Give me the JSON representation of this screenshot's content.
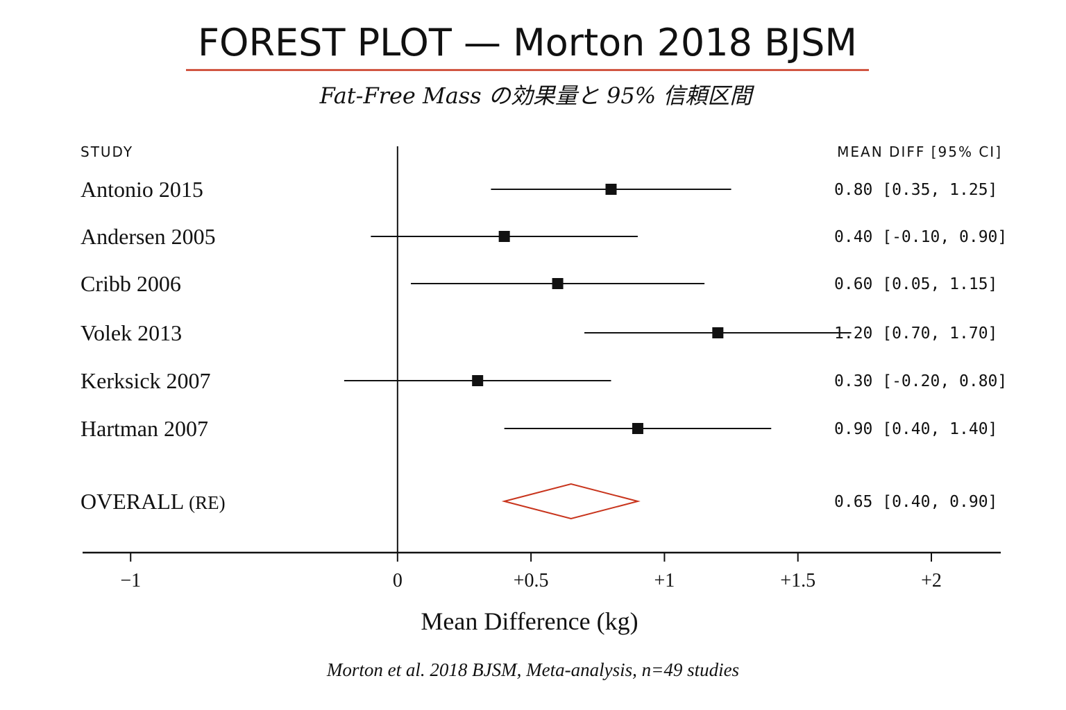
{
  "chart_data": {
    "type": "forest",
    "title": "FOREST PLOT — Morton 2018 BJSM",
    "subtitle": "Fat-Free Mass の効果量と 95% 信頼区間",
    "col_study": "STUDY",
    "col_effect": "MEAN DIFF [95% CI]",
    "xlabel": "Mean Difference (kg)",
    "xlim": [
      -1.18,
      2.26
    ],
    "x_ticks": [
      -1,
      0,
      0.5,
      1,
      1.5,
      2
    ],
    "x_tick_labels": [
      "−1",
      "0",
      "+0.5",
      "+1",
      "+1.5",
      "+2"
    ],
    "studies": [
      {
        "name": "Antonio 2015",
        "mean": 0.8,
        "lo": 0.35,
        "hi": 1.25,
        "label": "0.80 [0.35, 1.25]"
      },
      {
        "name": "Andersen 2005",
        "mean": 0.4,
        "lo": -0.1,
        "hi": 0.9,
        "label": "0.40 [-0.10, 0.90]"
      },
      {
        "name": "Cribb 2006",
        "mean": 0.6,
        "lo": 0.05,
        "hi": 1.15,
        "label": "0.60 [0.05, 1.15]"
      },
      {
        "name": "Volek 2013",
        "mean": 1.2,
        "lo": 0.7,
        "hi": 1.7,
        "label": "1.20 [0.70, 1.70]"
      },
      {
        "name": "Kerksick 2007",
        "mean": 0.3,
        "lo": -0.2,
        "hi": 0.8,
        "label": "0.30 [-0.20, 0.80]"
      },
      {
        "name": "Hartman 2007",
        "mean": 0.9,
        "lo": 0.4,
        "hi": 1.4,
        "label": "0.90 [0.40, 1.40]"
      }
    ],
    "overall": {
      "name": "OVERALL",
      "model": "(RE)",
      "mean": 0.65,
      "lo": 0.4,
      "hi": 0.9,
      "label": "0.65 [0.40, 0.90]"
    },
    "source": "Morton et al. 2018 BJSM, Meta-analysis, n=49 studies",
    "colors": {
      "accent": "#c8341c",
      "ink": "#111111"
    }
  }
}
